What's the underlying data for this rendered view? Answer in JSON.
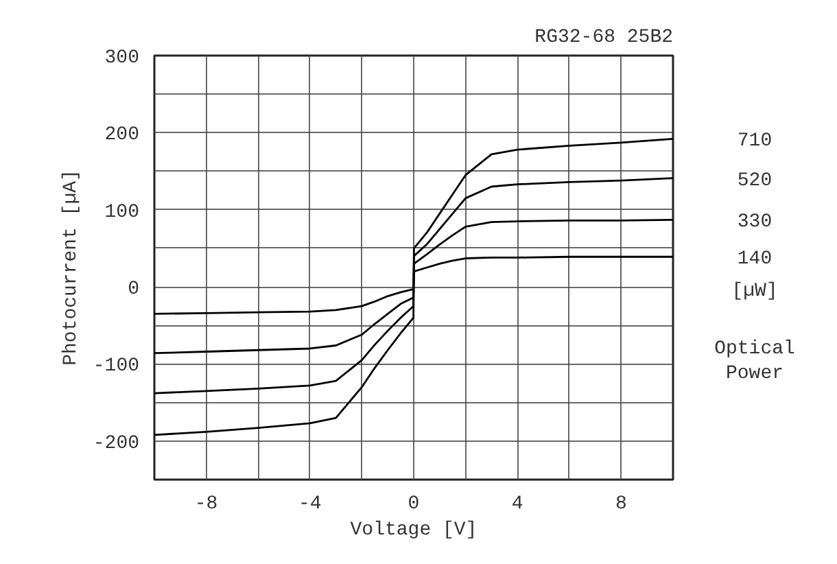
{
  "chart_data": {
    "type": "line",
    "title": "RG32-68 25B2",
    "xlabel": "Voltage [V]",
    "ylabel": "Photocurrent [µA]",
    "legend_title": "[µW]",
    "annotations": [
      "Optical Power"
    ],
    "x": [
      -10,
      -8,
      -6,
      -4,
      -3,
      -2,
      -1.5,
      -1,
      -0.5,
      -0.01,
      0.01,
      0.5,
      1,
      1.5,
      2,
      3,
      4,
      6,
      8,
      10
    ],
    "series": [
      {
        "name": "710",
        "color": "#000000",
        "values": [
          -192,
          -188,
          -183,
          -177,
          -170,
          -130,
          -105,
          -82,
          -60,
          -40,
          50,
          70,
          95,
          120,
          145,
          172,
          178,
          183,
          187,
          192
        ]
      },
      {
        "name": "520",
        "color": "#000000",
        "values": [
          -138,
          -135,
          -132,
          -128,
          -122,
          -95,
          -75,
          -57,
          -40,
          -25,
          40,
          55,
          75,
          95,
          115,
          130,
          133,
          136,
          138,
          141
        ]
      },
      {
        "name": "330",
        "color": "#000000",
        "values": [
          -86,
          -84,
          -82,
          -80,
          -76,
          -62,
          -48,
          -35,
          -22,
          -14,
          30,
          42,
          55,
          67,
          78,
          84,
          85,
          86,
          86,
          87
        ]
      },
      {
        "name": "140",
        "color": "#000000",
        "values": [
          -35,
          -34,
          -33,
          -32,
          -30,
          -25,
          -19,
          -12,
          -7,
          -3,
          20,
          25,
          30,
          34,
          37,
          38,
          38,
          39,
          39,
          39
        ]
      }
    ],
    "xlim": [
      -10,
      10
    ],
    "xticks": [
      {
        "value": -10,
        "label": null
      },
      -8,
      {
        "value": -6,
        "label": null
      },
      -4,
      {
        "value": -2,
        "label": null
      },
      0,
      {
        "value": 2,
        "label": null
      },
      4,
      {
        "value": 6,
        "label": null
      },
      8,
      {
        "value": 10,
        "label": null
      }
    ],
    "ylim": [
      -250,
      300
    ],
    "yticks": [
      {
        "value": -250,
        "label": null
      },
      -200,
      {
        "value": -150,
        "label": null
      },
      -100,
      {
        "value": -50,
        "label": null
      },
      0,
      {
        "value": 50,
        "label": null
      },
      100,
      {
        "value": 150,
        "label": null
      },
      200,
      {
        "value": 250,
        "label": null
      },
      300
    ],
    "grid": true,
    "marker": "none",
    "line_style": "solid"
  }
}
